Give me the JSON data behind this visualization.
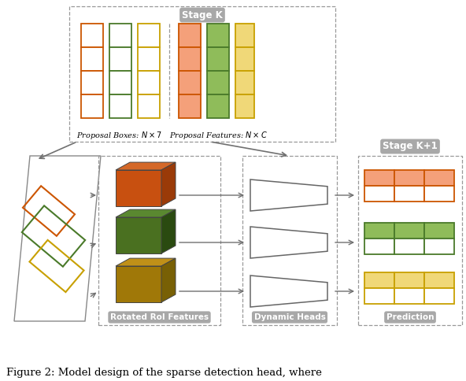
{
  "colors": {
    "orange_edge": "#CC5500",
    "orange_fill": "#F4A07A",
    "green_edge": "#4A7A2A",
    "green_fill": "#8FBC5A",
    "yellow_edge": "#C8A000",
    "yellow_fill": "#F0D878",
    "cube_orange_front": "#C85010",
    "cube_orange_top": "#D46828",
    "cube_orange_right": "#9A3A08",
    "cube_green_front": "#4A7020",
    "cube_green_top": "#5A8830",
    "cube_green_right": "#2A4A10",
    "cube_yellow_front": "#A07808",
    "cube_yellow_top": "#C09018",
    "cube_yellow_right": "#786005",
    "arrow": "#707070",
    "dashed": "#999999",
    "label_bg": "#A0A0A0",
    "stage_bg": "#909090",
    "bg": "#FFFFFF",
    "plane_edge": "#888888"
  },
  "stage_k_label": "Stage K",
  "stage_k1_label": "Stage K+1",
  "proposal_boxes_label": "Proposal Boxes: $N \\times 7$",
  "proposal_features_label": "Proposal Features: $N \\times C$",
  "rotated_roi_label": "Rotated RoI Features",
  "dynamic_heads_label": "Dynamic Heads",
  "prediction_label": "Prediction",
  "caption": "Figure 2: Model design of the sparse detection head, where"
}
